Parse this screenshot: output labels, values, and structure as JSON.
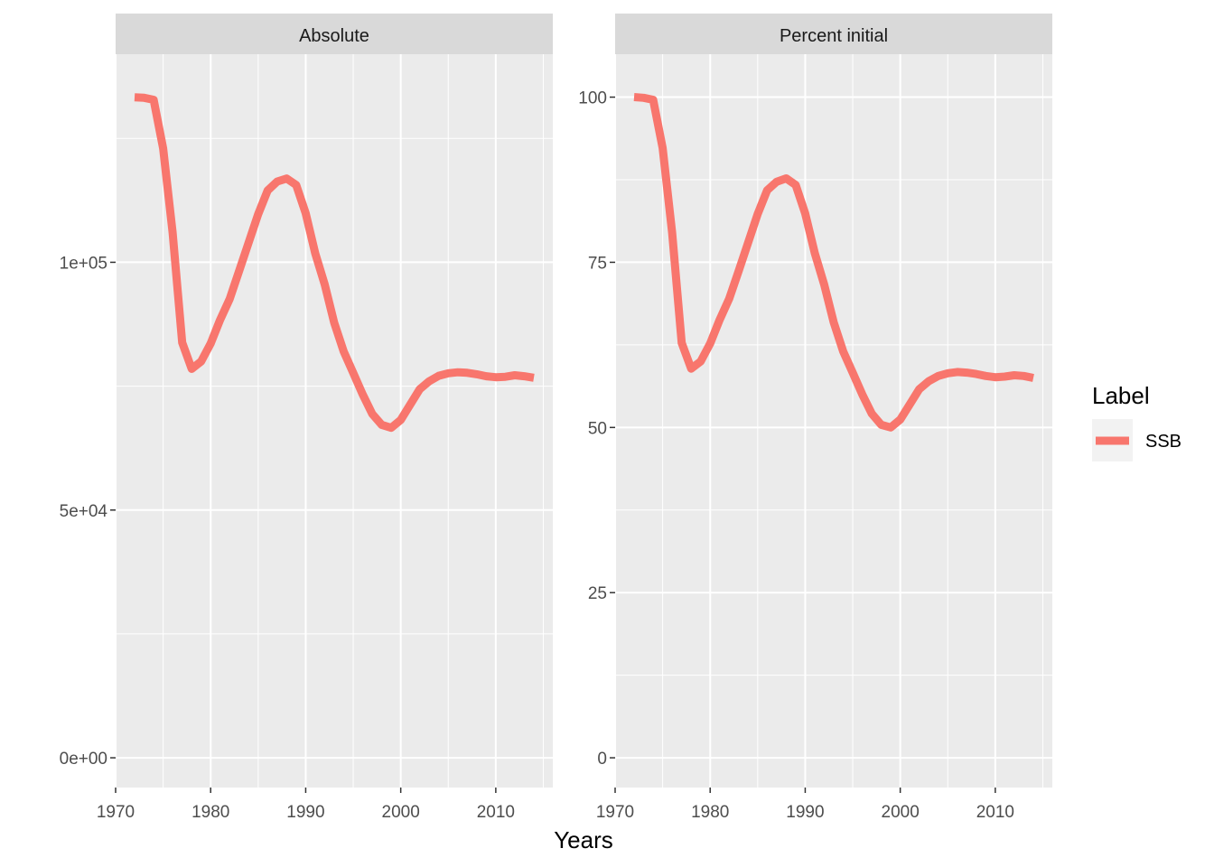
{
  "chart_data": {
    "type": "line",
    "xlabel": "Years",
    "legend": {
      "title": "Label",
      "position": "right",
      "entries": [
        {
          "name": "SSB",
          "color": "#F8766D"
        }
      ]
    },
    "line_color": "#F8766D",
    "panel_background": "#EBEBEB",
    "strip_background": "#D9D9D9",
    "grid_color": "#FFFFFF",
    "x_ticks": [
      "1970",
      "1980",
      "1990",
      "2000",
      "2010"
    ],
    "x_tick_values": [
      1970,
      1980,
      1990,
      2000,
      2010
    ],
    "xlim": [
      1970,
      2016
    ],
    "facets": [
      {
        "title": "Absolute",
        "ylim": [
          -6000,
          142000
        ],
        "y_tick_values": [
          0,
          50000,
          100000
        ],
        "y_ticks": [
          "0e+00",
          "5e+04",
          "1e+05"
        ],
        "series": [
          {
            "name": "SSB",
            "x": [
              1972,
              1973,
              1974,
              1975,
              1976,
              1977,
              1978,
              1979,
              1980,
              1981,
              1982,
              1983,
              1984,
              1985,
              1986,
              1987,
              1988,
              1989,
              1990,
              1991,
              1992,
              1993,
              1994,
              1995,
              1996,
              1997,
              1998,
              1999,
              2000,
              2001,
              2002,
              2003,
              2004,
              2005,
              2006,
              2007,
              2008,
              2009,
              2010,
              2011,
              2012,
              2013,
              2014
            ],
            "y": [
              133300,
              133200,
              132800,
              123000,
              106000,
              83800,
              78500,
              80000,
              83600,
              88400,
              92600,
              98300,
              104000,
              109700,
              114500,
              116300,
              116900,
              115600,
              109900,
              101800,
              95500,
              87800,
              82000,
              77700,
              73300,
              69400,
              67200,
              66600,
              68200,
              71300,
              74400,
              76000,
              77100,
              77600,
              77800,
              77700,
              77400,
              77000,
              76800,
              76900,
              77200,
              77000,
              76700
            ]
          }
        ]
      },
      {
        "title": "Percent initial",
        "ylim": [
          -4.5,
          106.5
        ],
        "y_tick_values": [
          0,
          25,
          50,
          75,
          100
        ],
        "y_ticks": [
          "0",
          "25",
          "50",
          "75",
          "100"
        ],
        "series": [
          {
            "name": "SSB",
            "x": [
              1972,
              1973,
              1974,
              1975,
              1976,
              1977,
              1978,
              1979,
              1980,
              1981,
              1982,
              1983,
              1984,
              1985,
              1986,
              1987,
              1988,
              1989,
              1990,
              1991,
              1992,
              1993,
              1994,
              1995,
              1996,
              1997,
              1998,
              1999,
              2000,
              2001,
              2002,
              2003,
              2004,
              2005,
              2006,
              2007,
              2008,
              2009,
              2010,
              2011,
              2012,
              2013,
              2014
            ],
            "y": [
              100,
              99.9,
              99.6,
              92.3,
              79.5,
              62.8,
              58.9,
              60.0,
              62.7,
              66.3,
              69.5,
              73.7,
              78.0,
              82.3,
              85.9,
              87.2,
              87.7,
              86.7,
              82.4,
              76.4,
              71.6,
              65.9,
              61.5,
              58.3,
              55.0,
              52.1,
              50.4,
              50.0,
              51.2,
              53.5,
              55.8,
              57.0,
              57.8,
              58.2,
              58.4,
              58.3,
              58.1,
              57.8,
              57.6,
              57.7,
              57.9,
              57.8,
              57.5
            ]
          }
        ]
      }
    ]
  }
}
